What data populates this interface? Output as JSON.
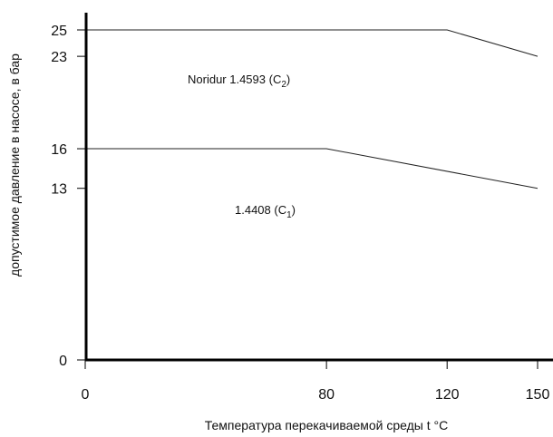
{
  "chart_data": {
    "type": "line",
    "xlabel": "Температура перекачиваемой среды t °C",
    "ylabel": "допустимое давление в насосе, в бар",
    "xlim": [
      0,
      150
    ],
    "ylim": [
      0,
      27
    ],
    "x_ticks": [
      "0",
      "80",
      "120",
      "150"
    ],
    "y_ticks": [
      "0",
      "13",
      "16",
      "23",
      "25"
    ],
    "grid": false,
    "series": [
      {
        "label": {
          "main": "Noridur 1.4593 (C",
          "sub": "2",
          "end": ")"
        },
        "x": [
          0,
          120,
          150
        ],
        "y": [
          25,
          25,
          23
        ]
      },
      {
        "label": {
          "main": "1.4408 (C",
          "sub": "1",
          "end": ")"
        },
        "x": [
          0,
          80,
          150
        ],
        "y": [
          16,
          16,
          13
        ]
      }
    ]
  }
}
